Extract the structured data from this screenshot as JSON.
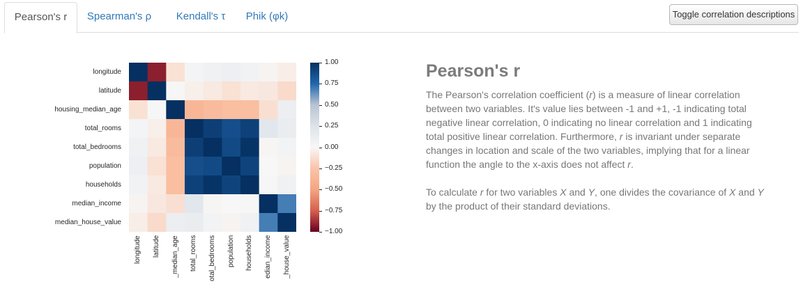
{
  "tabs": [
    {
      "label": "Pearson's r",
      "active": true
    },
    {
      "label": "Spearman's ρ",
      "active": false
    },
    {
      "label": "Kendall's τ",
      "active": false
    },
    {
      "label": "Phik (φk)",
      "active": false
    }
  ],
  "toggle_button": {
    "label": "Toggle correlation descriptions"
  },
  "heatmap": {
    "row_labels": [
      "longitude",
      "latitude",
      "housing_median_age",
      "total_rooms",
      "total_bedrooms",
      "population",
      "households",
      "median_income",
      "median_house_value"
    ],
    "column_labels": [
      "longitude",
      "latitude",
      "_median_age",
      "total_rooms",
      "otal_bedrooms",
      "population",
      "households",
      "edian_income",
      "_house_value"
    ],
    "colorbar_ticks": [
      "1.00",
      "0.75",
      "0.50",
      "0.25",
      "0.00",
      "−0.25",
      "−0.50",
      "−0.75",
      "−1.00"
    ],
    "colorscale": {
      "negative": "#67001f",
      "neutral": "#f7f7f7",
      "positive": "#053061"
    },
    "colorbar_range": [
      -1,
      1
    ],
    "matrix": [
      [
        1.0,
        -0.92,
        -0.11,
        0.04,
        0.07,
        0.1,
        0.06,
        -0.02,
        -0.05
      ],
      [
        -0.92,
        1.0,
        0.01,
        -0.04,
        -0.07,
        -0.11,
        -0.07,
        -0.08,
        -0.14
      ],
      [
        -0.11,
        0.01,
        1.0,
        -0.36,
        -0.32,
        -0.3,
        -0.3,
        -0.12,
        0.11
      ],
      [
        0.04,
        -0.04,
        -0.36,
        1.0,
        0.93,
        0.86,
        0.92,
        0.2,
        0.13
      ],
      [
        0.07,
        -0.07,
        -0.32,
        0.93,
        1.0,
        0.88,
        0.98,
        -0.01,
        0.05
      ],
      [
        0.1,
        -0.11,
        -0.3,
        0.86,
        0.88,
        1.0,
        0.91,
        0.0,
        -0.02
      ],
      [
        0.06,
        -0.07,
        -0.3,
        0.92,
        0.98,
        0.91,
        1.0,
        0.01,
        0.07
      ],
      [
        -0.02,
        -0.08,
        -0.12,
        0.2,
        -0.01,
        0.0,
        0.01,
        1.0,
        0.69
      ],
      [
        -0.05,
        -0.14,
        0.11,
        0.13,
        0.05,
        -0.02,
        0.07,
        0.69,
        1.0
      ]
    ]
  },
  "description": {
    "title": "Pearson's r",
    "para1": [
      {
        "t": "The Pearson's correlation coefficient ("
      },
      {
        "t": "r",
        "i": true
      },
      {
        "t": ") is a measure of linear correlation between two variables. It's value lies between -1 and +1, -1 indicating total negative linear correlation, 0 indicating no linear correlation and 1 indicating total positive linear correlation. Furthermore, "
      },
      {
        "t": "r",
        "i": true
      },
      {
        "t": " is invariant under separate changes in location and scale of the two variables, implying that for a linear function the angle to the x-axis does not affect "
      },
      {
        "t": "r",
        "i": true
      },
      {
        "t": "."
      }
    ],
    "para2": [
      {
        "t": "To calculate "
      },
      {
        "t": "r",
        "i": true
      },
      {
        "t": " for two variables "
      },
      {
        "t": "X",
        "i": true
      },
      {
        "t": " and "
      },
      {
        "t": "Y",
        "i": true
      },
      {
        "t": ", one divides the covariance of "
      },
      {
        "t": "X",
        "i": true
      },
      {
        "t": " and "
      },
      {
        "t": "Y",
        "i": true
      },
      {
        "t": " by the product of their standard deviations."
      }
    ]
  }
}
